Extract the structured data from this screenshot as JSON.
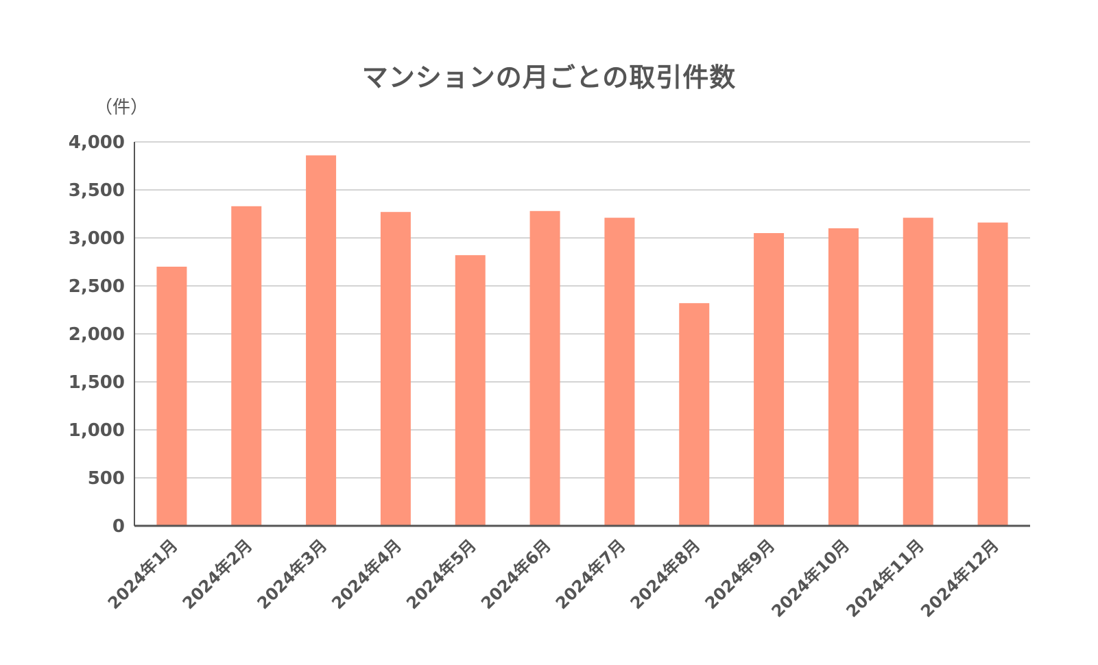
{
  "chart_data": {
    "type": "bar",
    "title": "マンションの月ごとの取引件数",
    "ylabel": "（件）",
    "xlabel": "",
    "categories": [
      "2024年1月",
      "2024年2月",
      "2024年3月",
      "2024年4月",
      "2024年5月",
      "2024年6月",
      "2024年7月",
      "2024年8月",
      "2024年9月",
      "2024年10月",
      "2024年11月",
      "2024年12月"
    ],
    "values": [
      2700,
      3330,
      3860,
      3270,
      2820,
      3280,
      3210,
      2320,
      3050,
      3100,
      3210,
      3160
    ],
    "ylim": [
      0,
      4000
    ],
    "yticks": [
      "0",
      "500",
      "1,000",
      "1,500",
      "2,000",
      "2,500",
      "3,000",
      "3,500",
      "4,000"
    ],
    "grid": true,
    "bar_color": "#FF967B",
    "grid_color": "#d4d4d4",
    "axis_color": "#555555"
  }
}
